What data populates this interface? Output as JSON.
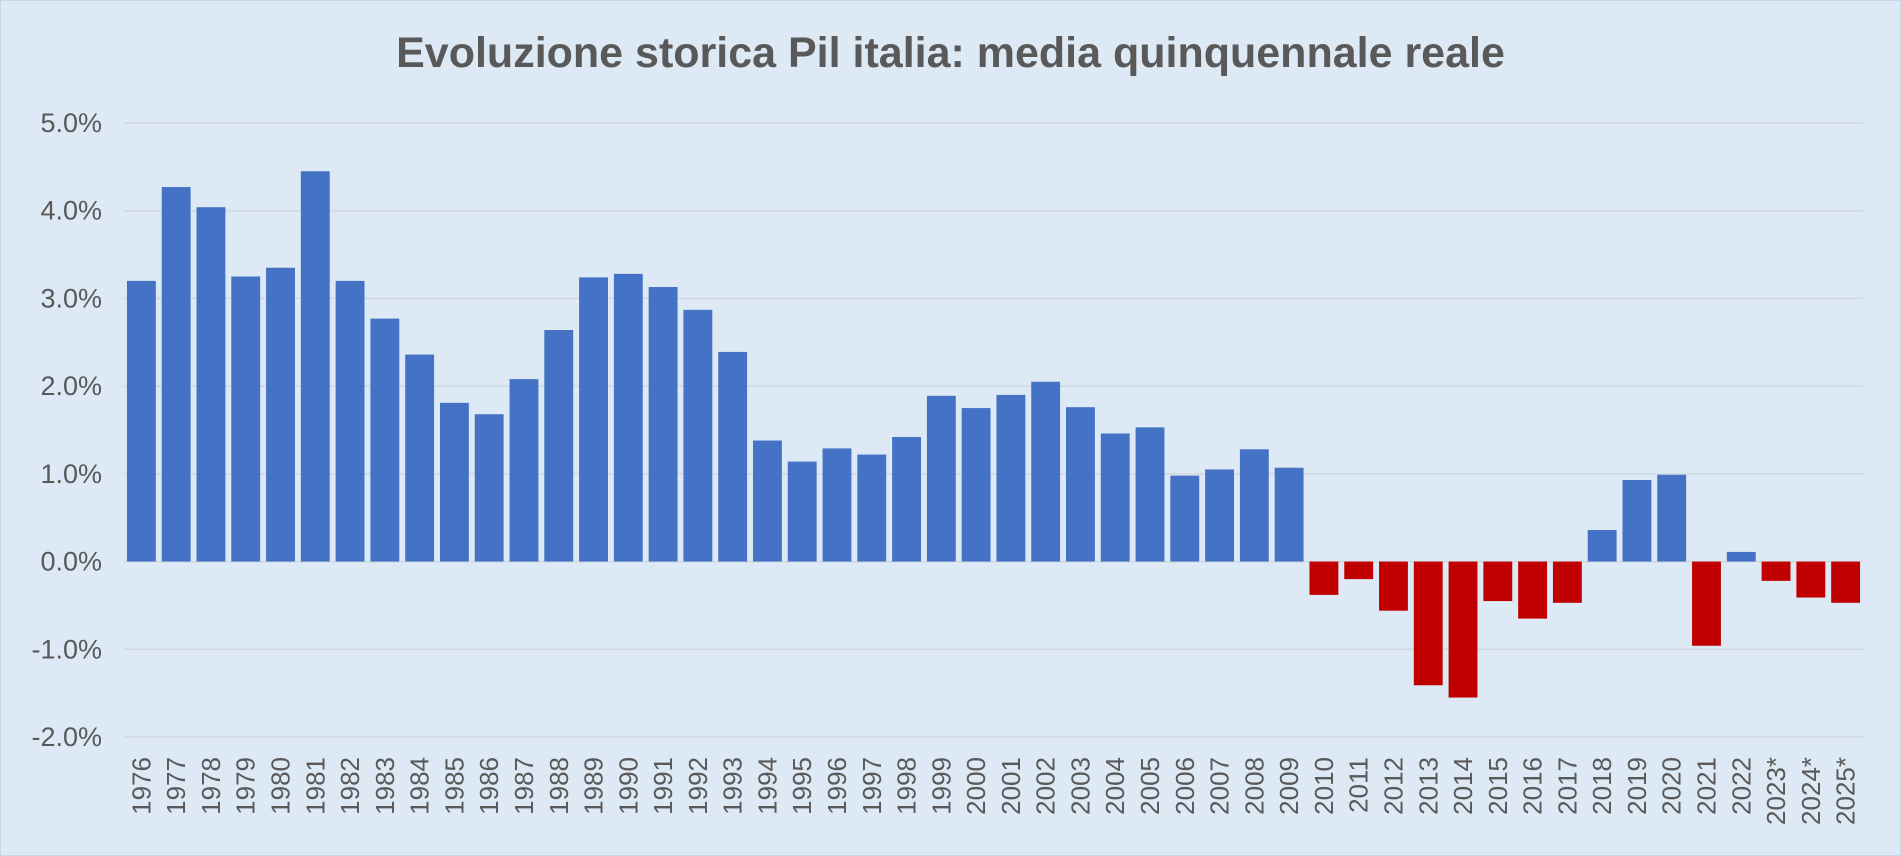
{
  "colors": {
    "positive": "#4472c4",
    "negative": "#c00000",
    "grid": "#d0d7de",
    "background": "#dde9f5",
    "text": "#595959"
  },
  "chart_data": {
    "type": "bar",
    "title": "Evoluzione storica Pil italia: media quinquennale reale",
    "xlabel": "",
    "ylabel": "",
    "ylim": [
      -2.0,
      5.0
    ],
    "yticks": [
      -2.0,
      -1.0,
      0.0,
      1.0,
      2.0,
      3.0,
      4.0,
      5.0
    ],
    "ytick_labels": [
      "-2.0%",
      "-1.0%",
      "0.0%",
      "1.0%",
      "2.0%",
      "3.0%",
      "4.0%",
      "5.0%"
    ],
    "grid": true,
    "legend": "none",
    "categories": [
      "1976",
      "1977",
      "1978",
      "1979",
      "1980",
      "1981",
      "1982",
      "1983",
      "1984",
      "1985",
      "1986",
      "1987",
      "1988",
      "1989",
      "1990",
      "1991",
      "1992",
      "1993",
      "1994",
      "1995",
      "1996",
      "1997",
      "1998",
      "1999",
      "2000",
      "2001",
      "2002",
      "2003",
      "2004",
      "2005",
      "2006",
      "2007",
      "2008",
      "2009",
      "2010",
      "2011",
      "2012",
      "2013",
      "2014",
      "2015",
      "2016",
      "2017",
      "2018",
      "2019",
      "2020",
      "2021",
      "2022",
      "2023*",
      "2024*",
      "2025*"
    ],
    "values": [
      3.2,
      4.27,
      4.04,
      3.25,
      3.35,
      4.45,
      3.2,
      2.77,
      2.36,
      1.81,
      1.68,
      2.08,
      2.64,
      3.24,
      3.28,
      3.13,
      2.87,
      2.39,
      1.38,
      1.14,
      1.29,
      1.22,
      1.42,
      1.89,
      1.75,
      1.9,
      2.05,
      1.76,
      1.46,
      1.53,
      0.98,
      1.05,
      1.28,
      1.07,
      -0.38,
      -0.2,
      -0.56,
      -1.41,
      -1.55,
      -0.45,
      -0.65,
      -0.47,
      0.36,
      0.93,
      0.99,
      -0.96,
      0.11,
      -0.22,
      -0.41,
      -0.47
    ]
  }
}
